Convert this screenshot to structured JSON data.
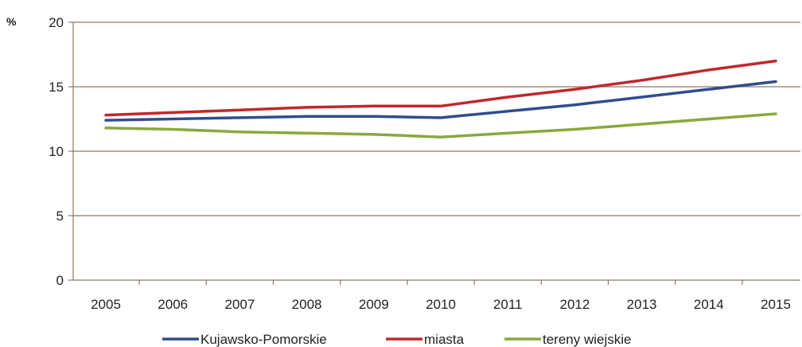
{
  "chart_data": {
    "type": "line",
    "title": "",
    "xlabel": "",
    "ylabel": "%",
    "ylim": [
      0,
      20
    ],
    "yticks": [
      0,
      5,
      10,
      15,
      20
    ],
    "grid": true,
    "legend_position": "bottom",
    "categories": [
      "2005",
      "2006",
      "2007",
      "2008",
      "2009",
      "2010",
      "2011",
      "2012",
      "2013",
      "2014",
      "2015"
    ],
    "series": [
      {
        "name": "Kujawsko-Pomorskie",
        "color": "#2f4d8f",
        "values": [
          12.4,
          12.5,
          12.6,
          12.7,
          12.7,
          12.6,
          13.1,
          13.6,
          14.2,
          14.8,
          15.4
        ]
      },
      {
        "name": "miasta",
        "color": "#c0282d",
        "values": [
          12.8,
          13.0,
          13.2,
          13.4,
          13.5,
          13.5,
          14.2,
          14.8,
          15.5,
          16.3,
          17.0
        ]
      },
      {
        "name": "tereny wiejskie",
        "color": "#8aa83e",
        "values": [
          11.8,
          11.7,
          11.5,
          11.4,
          11.3,
          11.1,
          11.4,
          11.7,
          12.1,
          12.5,
          12.9
        ]
      }
    ]
  }
}
